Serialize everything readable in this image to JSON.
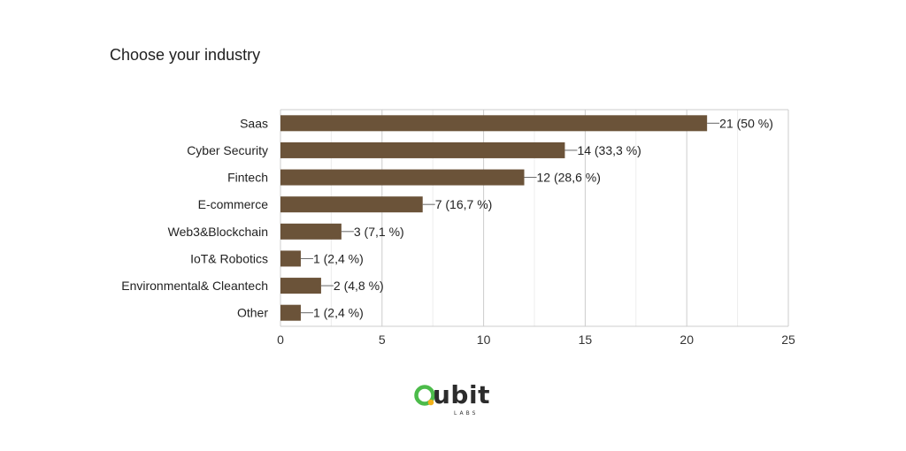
{
  "chart_data": {
    "type": "bar",
    "orientation": "horizontal",
    "title": "Choose your industry",
    "categories": [
      "Saas",
      "Cyber Security",
      "Fintech",
      "E-commerce",
      "Web3&Blockchain",
      "IoT& Robotics",
      "Environmental& Cleantech",
      "Other"
    ],
    "values": [
      21,
      14,
      12,
      7,
      3,
      1,
      2,
      1
    ],
    "data_labels": [
      "21 (50 %)",
      "14 (33,3 %)",
      "12 (28,6 %)",
      "7 (16,7 %)",
      "3 (7,1 %)",
      "1 (2,4 %)",
      "2 (4,8 %)",
      "1 (2,4 %)"
    ],
    "xlim": [
      0,
      25
    ],
    "xticks": [
      0,
      5,
      10,
      15,
      20,
      25
    ],
    "grid": true,
    "bar_color": "#6b5339"
  },
  "logo": {
    "name": "Qubit Labs",
    "word": "ubit",
    "sub": "LABS",
    "ring_color": "#4cbb4a",
    "dot_color": "#f2b21a"
  }
}
